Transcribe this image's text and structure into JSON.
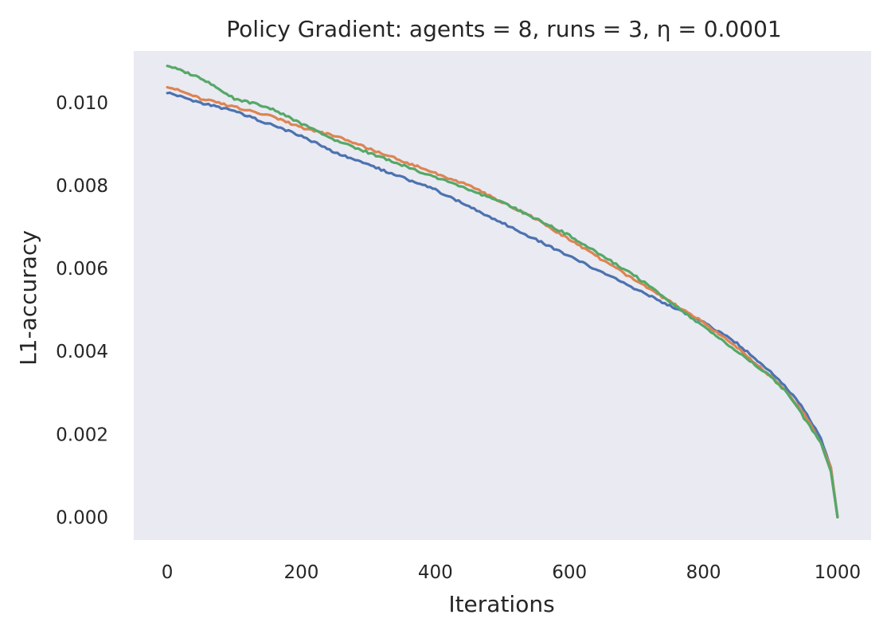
{
  "chart_data": {
    "type": "line",
    "title": "Policy Gradient: agents = 8, runs = 3, η = 0.0001",
    "xlabel": "Iterations",
    "ylabel": "L1-accuracy",
    "xlim": [
      -50,
      1050
    ],
    "ylim": [
      -0.00055,
      0.01125
    ],
    "x_ticks": [
      0,
      200,
      400,
      600,
      800,
      1000
    ],
    "y_ticks": [
      0.0,
      0.002,
      0.004,
      0.006,
      0.008,
      0.01
    ],
    "x_tick_labels": [
      "0",
      "200",
      "400",
      "600",
      "800",
      "1000"
    ],
    "y_tick_labels": [
      "0.000",
      "0.002",
      "0.004",
      "0.006",
      "0.008",
      "0.010"
    ],
    "grid": false,
    "plot_background": "#eaeaf2",
    "x": [
      0,
      50,
      100,
      150,
      200,
      250,
      300,
      350,
      400,
      450,
      500,
      550,
      600,
      650,
      700,
      750,
      800,
      850,
      900,
      925,
      950,
      975,
      990,
      1000
    ],
    "series": [
      {
        "color": "#4c72b0",
        "values": [
          0.01025,
          0.01,
          0.0098,
          0.0095,
          0.0092,
          0.0088,
          0.0085,
          0.0082,
          0.0079,
          0.0075,
          0.0071,
          0.0067,
          0.0063,
          0.0059,
          0.0055,
          0.0051,
          0.0047,
          0.0042,
          0.0035,
          0.0031,
          0.0026,
          0.0019,
          0.0012,
          0.0
        ]
      },
      {
        "color": "#dd8452",
        "values": [
          0.0104,
          0.0101,
          0.0099,
          0.0097,
          0.0094,
          0.0092,
          0.0089,
          0.0086,
          0.0083,
          0.008,
          0.0076,
          0.0072,
          0.0067,
          0.0062,
          0.0057,
          0.0052,
          0.0047,
          0.0041,
          0.0034,
          0.003,
          0.0025,
          0.0018,
          0.0012,
          0.0
        ]
      },
      {
        "color": "#55a868",
        "values": [
          0.0109,
          0.0106,
          0.0101,
          0.0099,
          0.0095,
          0.0091,
          0.0088,
          0.0085,
          0.0082,
          0.0079,
          0.0076,
          0.0072,
          0.0068,
          0.0063,
          0.0058,
          0.0052,
          0.0046,
          0.004,
          0.0034,
          0.003,
          0.0024,
          0.0018,
          0.0011,
          0.0
        ]
      }
    ]
  }
}
